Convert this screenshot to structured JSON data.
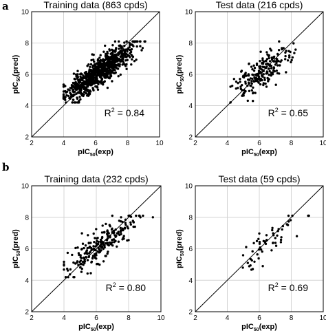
{
  "panel_labels": [
    "a",
    "b"
  ],
  "chart_data": [
    {
      "type": "scatter",
      "panel": "a",
      "title": "Training data (863 cpds)",
      "xlabel_main": "pIC",
      "xlabel_sub": "50",
      "xlabel_tail": "(exp)",
      "ylabel_main": "pIC",
      "ylabel_sub": "50",
      "ylabel_tail": "(pred)",
      "xlim": [
        2,
        10
      ],
      "ylim": [
        2,
        10
      ],
      "xticks": [
        2,
        4,
        6,
        8,
        10
      ],
      "yticks": [
        2,
        4,
        6,
        8,
        10
      ],
      "grid": true,
      "diagonal": true,
      "r2_prefix": "R",
      "r2_sup": "2",
      "r2_value": " = 0.84",
      "points": {
        "n": 863,
        "x_range": [
          4.0,
          9.1
        ],
        "slope": 0.72,
        "intercept": 1.68,
        "noise": 0.45,
        "seed": 11
      },
      "x": [],
      "y": []
    },
    {
      "type": "scatter",
      "panel": "a",
      "title": "Test data (216 cpds)",
      "xlabel_main": "pIC",
      "xlabel_sub": "50",
      "xlabel_tail": "(exp)",
      "ylabel_main": "pIC",
      "ylabel_sub": "50",
      "ylabel_tail": "(pred)",
      "xlim": [
        2,
        10
      ],
      "ylim": [
        2,
        10
      ],
      "xticks": [
        2,
        4,
        6,
        8,
        10
      ],
      "yticks": [
        2,
        4,
        6,
        8,
        10
      ],
      "grid": true,
      "diagonal": true,
      "r2_prefix": "R",
      "r2_sup": "2",
      "r2_value": " = 0.65",
      "points": {
        "n": 216,
        "x_range": [
          4.2,
          8.7
        ],
        "slope": 0.68,
        "intercept": 1.9,
        "noise": 0.55,
        "seed": 23
      },
      "x": [],
      "y": []
    },
    {
      "type": "scatter",
      "panel": "b",
      "title": "Training data (232 cpds)",
      "xlabel_main": "pIC",
      "xlabel_sub": "50",
      "xlabel_tail": "(exp)",
      "ylabel_main": "pIC",
      "ylabel_sub": "50",
      "ylabel_tail": "(pred)",
      "xlim": [
        2,
        10
      ],
      "ylim": [
        2,
        10
      ],
      "xticks": [
        2,
        4,
        6,
        8,
        10
      ],
      "yticks": [
        2,
        4,
        6,
        8,
        10
      ],
      "grid": true,
      "diagonal": true,
      "r2_prefix": "R",
      "r2_sup": "2",
      "r2_value": " = 0.80",
      "points": {
        "n": 232,
        "x_range": [
          4.0,
          9.5
        ],
        "slope": 0.72,
        "intercept": 1.75,
        "noise": 0.5,
        "seed": 37
      },
      "x": [],
      "y": []
    },
    {
      "type": "scatter",
      "panel": "b",
      "title": "Test data (59 cpds)",
      "xlabel_main": "pIC",
      "xlabel_sub": "50",
      "xlabel_tail": "(exp)",
      "ylabel_main": "pIC",
      "ylabel_sub": "50",
      "ylabel_tail": "(pred)",
      "xlim": [
        2,
        10
      ],
      "ylim": [
        2,
        10
      ],
      "xticks": [
        2,
        4,
        6,
        8,
        10
      ],
      "yticks": [
        2,
        4,
        6,
        8,
        10
      ],
      "grid": true,
      "diagonal": true,
      "r2_prefix": "R",
      "r2_sup": "2",
      "r2_value": " = 0.69",
      "points": {
        "n": 59,
        "x_range": [
          4.5,
          9.1
        ],
        "slope": 0.78,
        "intercept": 1.25,
        "noise": 0.5,
        "seed": 51
      },
      "x": [],
      "y": []
    }
  ]
}
